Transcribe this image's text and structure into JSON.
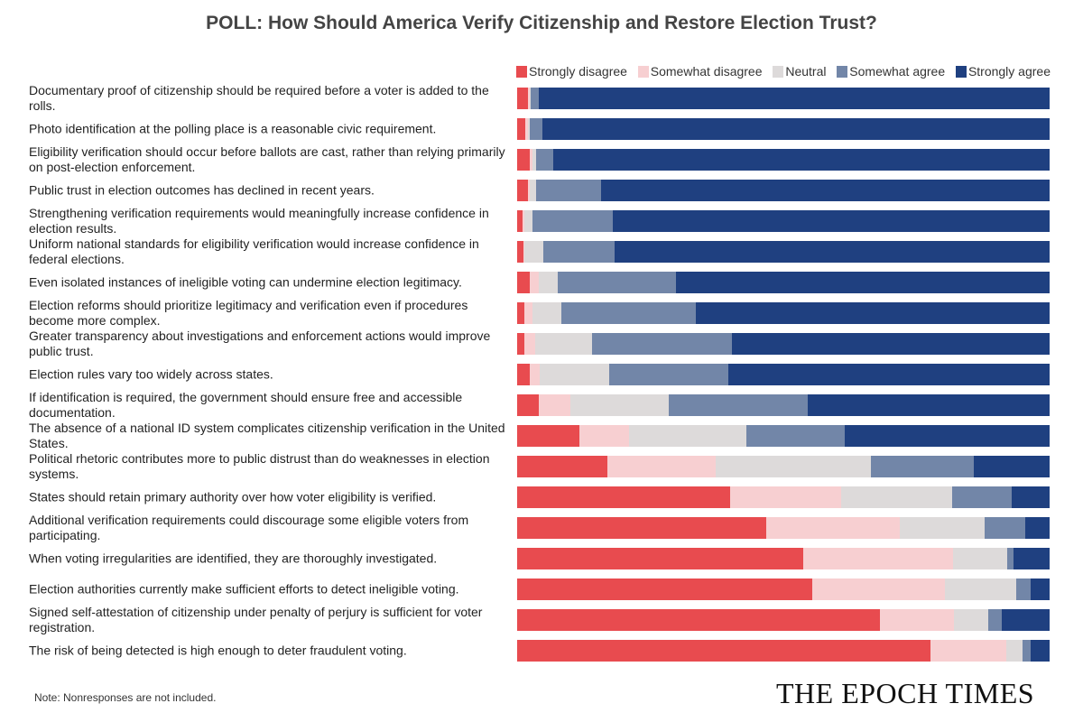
{
  "chart_data": {
    "type": "bar",
    "orientation": "horizontal",
    "stacked": true,
    "normalized_percent": true,
    "title": "POLL: How Should America Verify Citizenship and Restore Election Trust?",
    "legend_position": "top-right",
    "grid": false,
    "series": [
      {
        "name": "Strongly disagree",
        "color": "#e84b4f"
      },
      {
        "name": "Somewhat disagree",
        "color": "#f7cfd1"
      },
      {
        "name": "Neutral",
        "color": "#dddada"
      },
      {
        "name": "Somewhat agree",
        "color": "#7286a8"
      },
      {
        "name": "Strongly agree",
        "color": "#1f4080"
      }
    ],
    "categories": [
      "Documentary proof of citizenship should be required before a voter is added to the rolls.",
      "Photo identification at the polling place is a reasonable civic requirement.",
      "Eligibility verification should occur before ballots are cast, rather than relying primarily on post-election enforcement.",
      "Public trust in election outcomes has declined in recent years.",
      "Strengthening verification requirements would meaningfully increase confidence in election results.",
      "Uniform national standards for eligibility verification would increase confidence in federal elections.",
      "Even isolated instances of ineligible voting can undermine election legitimacy.",
      "Election reforms should prioritize legitimacy and verification even if procedures become more complex.",
      "Greater transparency about investigations and enforcement actions would improve public trust.",
      "Election rules vary too widely across states.",
      "If identification is required, the government should ensure free and accessible documentation.",
      "The absence of a national ID system complicates citizenship verification in the United States.",
      "Political rhetoric contributes more to public distrust than do weaknesses in election systems.",
      "States should retain primary authority over how voter eligibility is verified.",
      "Additional verification requirements could discourage some eligible voters from participating.",
      "When voting irregularities are identified, they are thoroughly investigated.",
      "Election authorities currently make sufficient efforts to detect ineligible voting.",
      "Signed self-attestation of citizenship under penalty of perjury is sufficient for voter registration.",
      "The risk of being detected is high enough to deter fraudulent voting."
    ],
    "values": [
      [
        2.0,
        0.3,
        0.3,
        1.4,
        96.0
      ],
      [
        1.6,
        0.4,
        0.4,
        2.3,
        95.3
      ],
      [
        2.3,
        0.5,
        0.7,
        3.2,
        93.3
      ],
      [
        2.0,
        0.3,
        1.2,
        12.3,
        84.2
      ],
      [
        1.1,
        0.2,
        1.6,
        15.0,
        82.1
      ],
      [
        1.2,
        0.2,
        3.6,
        13.3,
        81.7
      ],
      [
        2.4,
        1.7,
        3.6,
        22.1,
        70.2
      ],
      [
        1.3,
        1.5,
        5.5,
        25.3,
        66.4
      ],
      [
        1.3,
        2.1,
        10.7,
        26.3,
        59.6
      ],
      [
        2.3,
        1.9,
        13.1,
        22.3,
        60.4
      ],
      [
        4.1,
        5.9,
        18.4,
        26.2,
        45.4
      ],
      [
        11.7,
        9.4,
        21.9,
        18.6,
        38.4
      ],
      [
        16.9,
        20.4,
        29.2,
        19.2,
        14.3
      ],
      [
        40.0,
        20.9,
        20.8,
        11.1,
        7.2
      ],
      [
        46.7,
        25.2,
        15.9,
        7.7,
        4.5
      ],
      [
        53.8,
        28.0,
        10.2,
        1.3,
        6.7
      ],
      [
        55.5,
        24.8,
        13.5,
        2.7,
        3.5
      ],
      [
        68.2,
        13.9,
        6.4,
        2.6,
        8.9
      ],
      [
        77.7,
        14.2,
        3.0,
        1.6,
        3.5
      ]
    ]
  },
  "footer": {
    "note": "Note: Nonresponses are not included.",
    "logo": "THE EPOCH TIMES"
  }
}
